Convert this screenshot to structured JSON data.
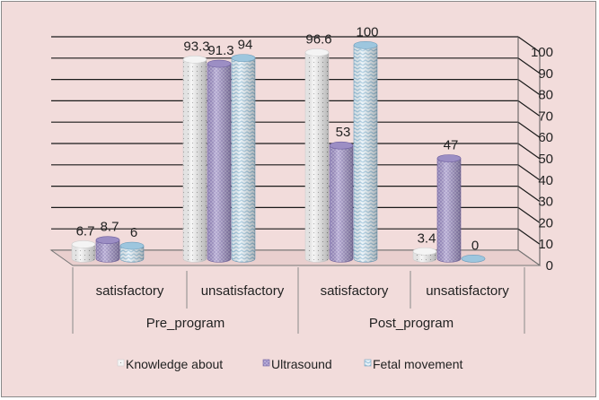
{
  "chart_data": {
    "type": "bar",
    "groups": [
      {
        "label": "Pre_program",
        "categories": [
          "satisfactory",
          "unsatisfactory"
        ]
      },
      {
        "label": "Post_program",
        "categories": [
          "satisfactory",
          "unsatisfactory"
        ]
      }
    ],
    "series": [
      {
        "name": "Knowledge about",
        "values": [
          6.7,
          93.3,
          96.6,
          3.4
        ]
      },
      {
        "name": "Ultrasound",
        "values": [
          8.7,
          91.3,
          53,
          47
        ]
      },
      {
        "name": "Fetal movement",
        "values": [
          6,
          94,
          100,
          0
        ]
      }
    ],
    "data_labels": [
      [
        "6.7",
        "93.3",
        "96.6",
        "3.4"
      ],
      [
        "8.7",
        "91.3",
        "53",
        "47"
      ],
      [
        "6",
        "94",
        "100",
        "0"
      ]
    ],
    "ylim": [
      0,
      100
    ],
    "yticks": [
      0,
      10,
      20,
      30,
      40,
      50,
      60,
      70,
      80,
      90,
      100
    ],
    "y_axis_side": "right",
    "grid": true,
    "legend_position": "bottom",
    "colors": {
      "background": "#f2dcdb",
      "series": [
        "#f4f4f4",
        "#9c8ec4",
        "#9dc6de"
      ],
      "series_dark": [
        "#cfcfcf",
        "#6e5f9f",
        "#6f9fbd"
      ],
      "grid": "#1a1a1a"
    }
  }
}
